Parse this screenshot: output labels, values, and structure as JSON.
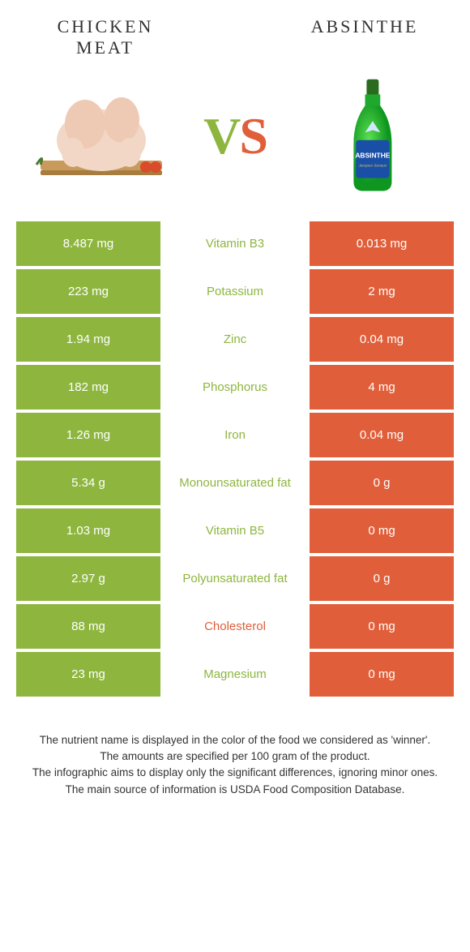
{
  "colors": {
    "green": "#8eb63f",
    "orange": "#e05f3a",
    "text_green": "#8eb63f",
    "text_orange": "#e05f3a",
    "vs_green": "#8eb63f",
    "vs_orange": "#e05f3a"
  },
  "left": {
    "title": "CHICKEN MEAT"
  },
  "right": {
    "title": "ABSINTHE"
  },
  "vs_label": "VS",
  "rows": [
    {
      "left": "8.487 mg",
      "mid": "Vitamin B3",
      "right": "0.013 mg",
      "winner": "left"
    },
    {
      "left": "223 mg",
      "mid": "Potassium",
      "right": "2 mg",
      "winner": "left"
    },
    {
      "left": "1.94 mg",
      "mid": "Zinc",
      "right": "0.04 mg",
      "winner": "left"
    },
    {
      "left": "182 mg",
      "mid": "Phosphorus",
      "right": "4 mg",
      "winner": "left"
    },
    {
      "left": "1.26 mg",
      "mid": "Iron",
      "right": "0.04 mg",
      "winner": "left"
    },
    {
      "left": "5.34 g",
      "mid": "Monounsaturated fat",
      "right": "0 g",
      "winner": "left"
    },
    {
      "left": "1.03 mg",
      "mid": "Vitamin B5",
      "right": "0 mg",
      "winner": "left"
    },
    {
      "left": "2.97 g",
      "mid": "Polyunsaturated fat",
      "right": "0 g",
      "winner": "left"
    },
    {
      "left": "88 mg",
      "mid": "Cholesterol",
      "right": "0 mg",
      "winner": "right"
    },
    {
      "left": "23 mg",
      "mid": "Magnesium",
      "right": "0 mg",
      "winner": "left"
    }
  ],
  "footer": {
    "line1": "The nutrient name is displayed in the color of the food we considered as 'winner'.",
    "line2": "The amounts are specified per 100 gram of the product.",
    "line3": "The infographic aims to display only the significant differences, ignoring minor ones.",
    "line4": "The main source of information is USDA Food Composition Database."
  }
}
